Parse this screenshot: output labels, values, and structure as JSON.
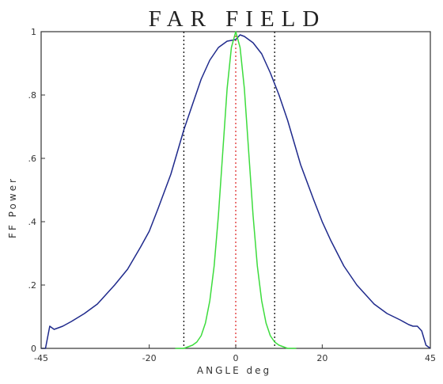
{
  "chart_data": {
    "type": "line",
    "title": "FAR FIELD",
    "xlabel": "ANGLE deg",
    "ylabel": "FF Power",
    "xlim": [
      -45,
      45
    ],
    "ylim": [
      0,
      1
    ],
    "x_ticks": [
      -45,
      -20,
      0,
      20,
      45
    ],
    "x_tick_labels": [
      "-45",
      "-20",
      "0",
      "20",
      "45"
    ],
    "y_ticks": [
      0,
      0.2,
      0.4,
      0.6,
      0.8,
      1
    ],
    "y_tick_labels": [
      "0",
      ".2",
      ".4",
      ".6",
      ".8",
      "1"
    ],
    "grid": false,
    "series": [
      {
        "color": "#1f2a8c",
        "x": [
          -45,
          -44,
          -43,
          -42,
          -41,
          -40,
          -38,
          -35,
          -32,
          -30,
          -28,
          -25,
          -22,
          -20,
          -18,
          -15,
          -12,
          -10,
          -8,
          -6,
          -4,
          -2,
          0,
          1,
          2,
          4,
          6,
          8,
          10,
          12,
          15,
          18,
          20,
          22,
          25,
          28,
          30,
          32,
          35,
          38,
          40,
          41,
          42,
          43,
          44,
          45
        ],
        "y": [
          0.0,
          0.0,
          0.07,
          0.06,
          0.065,
          0.07,
          0.085,
          0.11,
          0.14,
          0.17,
          0.2,
          0.25,
          0.32,
          0.37,
          0.44,
          0.55,
          0.69,
          0.77,
          0.85,
          0.91,
          0.95,
          0.97,
          0.975,
          0.99,
          0.985,
          0.965,
          0.93,
          0.87,
          0.8,
          0.72,
          0.58,
          0.47,
          0.4,
          0.34,
          0.26,
          0.2,
          0.17,
          0.14,
          0.11,
          0.09,
          0.075,
          0.07,
          0.07,
          0.055,
          0.01,
          0.0
        ]
      },
      {
        "color": "#3ddc3d",
        "x": [
          -14,
          -12,
          -10,
          -9,
          -8,
          -7,
          -6,
          -5,
          -4,
          -3,
          -2,
          -1,
          0,
          1,
          2,
          3,
          4,
          5,
          6,
          7,
          8,
          9,
          10,
          12,
          14
        ],
        "y": [
          0.0,
          0.0,
          0.01,
          0.02,
          0.04,
          0.08,
          0.15,
          0.26,
          0.42,
          0.62,
          0.82,
          0.95,
          1.0,
          0.95,
          0.82,
          0.62,
          0.42,
          0.26,
          0.15,
          0.08,
          0.04,
          0.02,
          0.01,
          0.0,
          0.0
        ]
      }
    ],
    "reference_lines": [
      {
        "x": -12,
        "color": "#111111",
        "style": "dotted"
      },
      {
        "x": 0,
        "color": "#e03030",
        "style": "dotted"
      },
      {
        "x": 9,
        "color": "#111111",
        "style": "dotted"
      }
    ]
  }
}
